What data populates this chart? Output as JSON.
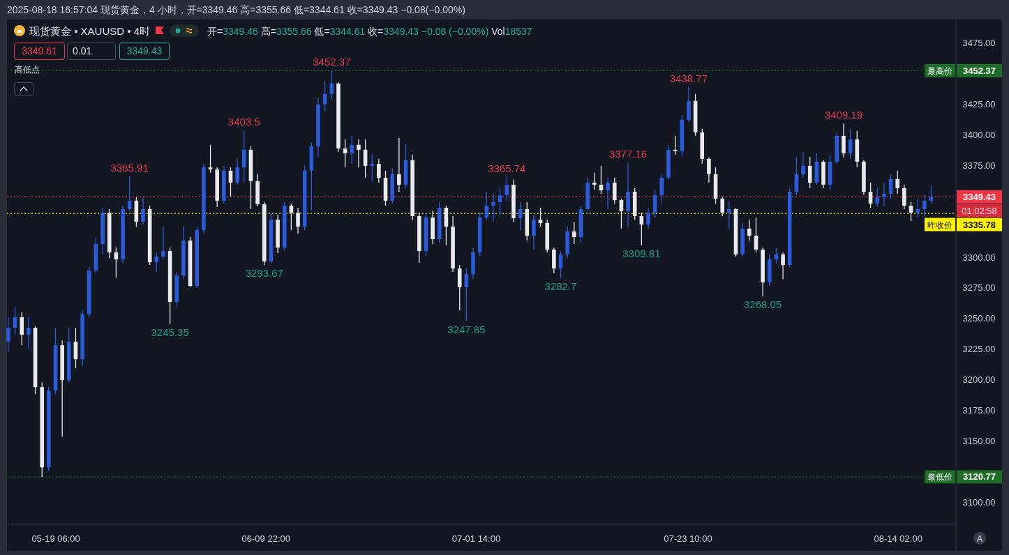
{
  "chart_data": {
    "type": "candlestick",
    "title": "现货黄金 • XAUUSD • 4时",
    "subtitle": "开=3349.46 高=3355.66 低=3344.61 收=3349.43 −0.08 (−0.00%) Vol18537",
    "annotations": [
      "2025-08-18 16:57:04 现货黄金，4 小时，开=3349.46 高=3355.66 低=3344.61 收=3349.43 −0.08(−0.00%)",
      "3349.61",
      "0.01",
      "3349.43",
      "高低点",
      "01:02:58",
      "A",
      {
        "text": "3365.91",
        "x": "2025-05-26T20:20",
        "y": 3365.91
      },
      {
        "text": "3245.35",
        "x": "2025-05-31T00:20",
        "y": 3245.35
      },
      {
        "text": "3403.5",
        "x": "2025-06-07T15:40",
        "y": 3403.5
      },
      {
        "text": "3293.67",
        "x": "2025-06-09T17:40",
        "y": 3293.67
      },
      {
        "text": "3452.37",
        "x": "2025-06-16T16:20",
        "y": 3452.37
      },
      {
        "text": "3247.85",
        "x": "2025-06-30T13:40",
        "y": 3247.85
      },
      {
        "text": "3365.74",
        "x": "2025-07-04T17:40",
        "y": 3365.74
      },
      {
        "text": "3282.7",
        "x": "2025-07-10T07:00",
        "y": 3282.7
      },
      {
        "text": "3377.16",
        "x": "2025-07-17T05:40",
        "y": 3377.16
      },
      {
        "text": "3309.81",
        "x": "2025-07-18T15:00",
        "y": 3309.81
      },
      {
        "text": "3438.77",
        "x": "2025-07-23T11:40",
        "y": 3438.77
      },
      {
        "text": "3268.05",
        "x": "2025-07-31T03:00",
        "y": 3268.05
      },
      {
        "text": "3409.19",
        "x": "2025-08-08T11:00",
        "y": 3409.19
      },
      "3452.37",
      "3120.77",
      "3349.43",
      "3335.78"
    ],
    "x": [
      "2025-05-14T08:20",
      "2025-05-15T01:00",
      "2025-05-15T17:40",
      "2025-05-16T10:20",
      "2025-05-17T03:00",
      "2025-05-17T19:40",
      "2025-05-18T12:20",
      "2025-05-19T05:00",
      "2025-05-19T21:40",
      "2025-05-20T14:20",
      "2025-05-21T07:00",
      "2025-05-21T23:40",
      "2025-05-22T16:20",
      "2025-05-23T09:00",
      "2025-05-24T01:40",
      "2025-05-24T18:20",
      "2025-05-25T11:00",
      "2025-05-26T03:40",
      "2025-05-26T20:20",
      "2025-05-27T13:00",
      "2025-05-28T05:40",
      "2025-05-28T22:20",
      "2025-05-29T15:00",
      "2025-05-30T07:40",
      "2025-05-31T00:20",
      "2025-05-31T17:00",
      "2025-06-01T09:40",
      "2025-06-02T02:20",
      "2025-06-02T19:00",
      "2025-06-03T11:40",
      "2025-06-04T04:20",
      "2025-06-04T21:00",
      "2025-06-05T13:40",
      "2025-06-06T06:20",
      "2025-06-06T23:00",
      "2025-06-07T15:40",
      "2025-06-08T08:20",
      "2025-06-09T01:00",
      "2025-06-09T17:40",
      "2025-06-10T10:20",
      "2025-06-11T03:00",
      "2025-06-11T19:40",
      "2025-06-12T12:20",
      "2025-06-13T05:00",
      "2025-06-13T21:40",
      "2025-06-14T14:20",
      "2025-06-15T07:00",
      "2025-06-15T23:40",
      "2025-06-16T16:20",
      "2025-06-17T09:00",
      "2025-06-18T01:40",
      "2025-06-18T18:20",
      "2025-06-19T11:00",
      "2025-06-20T03:40",
      "2025-06-20T20:20",
      "2025-06-21T13:00",
      "2025-06-22T05:40",
      "2025-06-22T22:20",
      "2025-06-23T15:00",
      "2025-06-24T07:40",
      "2025-06-25T00:20",
      "2025-06-25T17:00",
      "2025-06-26T09:40",
      "2025-06-27T02:20",
      "2025-06-27T19:00",
      "2025-06-28T11:40",
      "2025-06-29T04:20",
      "2025-06-29T21:00",
      "2025-06-30T13:40",
      "2025-07-01T06:20",
      "2025-07-01T23:00",
      "2025-07-02T15:40",
      "2025-07-03T08:20",
      "2025-07-04T01:00",
      "2025-07-04T17:40",
      "2025-07-05T10:20",
      "2025-07-06T03:00",
      "2025-07-06T19:40",
      "2025-07-07T12:20",
      "2025-07-08T05:00",
      "2025-07-08T21:40",
      "2025-07-09T14:20",
      "2025-07-10T07:00",
      "2025-07-10T23:40",
      "2025-07-11T16:20",
      "2025-07-12T09:00",
      "2025-07-13T01:40",
      "2025-07-13T18:20",
      "2025-07-14T11:00",
      "2025-07-15T03:40",
      "2025-07-15T20:20",
      "2025-07-16T13:00",
      "2025-07-17T05:40",
      "2025-07-17T22:20",
      "2025-07-18T15:00",
      "2025-07-19T07:40",
      "2025-07-20T00:20",
      "2025-07-20T17:00",
      "2025-07-21T09:40",
      "2025-07-22T02:20",
      "2025-07-22T19:00",
      "2025-07-23T11:40",
      "2025-07-24T04:20",
      "2025-07-24T21:00",
      "2025-07-25T13:40",
      "2025-07-26T06:20",
      "2025-07-26T23:00",
      "2025-07-27T15:40",
      "2025-07-28T08:20",
      "2025-07-29T01:00",
      "2025-07-29T17:40",
      "2025-07-30T10:20",
      "2025-07-31T03:00",
      "2025-07-31T19:40",
      "2025-08-01T12:20",
      "2025-08-02T05:00",
      "2025-08-02T21:40",
      "2025-08-03T14:20",
      "2025-08-04T07:00",
      "2025-08-04T23:40",
      "2025-08-05T16:20",
      "2025-08-06T09:00",
      "2025-08-07T01:40",
      "2025-08-07T18:20",
      "2025-08-08T11:00",
      "2025-08-09T03:40",
      "2025-08-09T20:20",
      "2025-08-10T13:00",
      "2025-08-11T05:40",
      "2025-08-11T22:20",
      "2025-08-12T15:00",
      "2025-08-13T07:40",
      "2025-08-14T00:20",
      "2025-08-14T17:00",
      "2025-08-15T09:40",
      "2025-08-16T02:20",
      "2025-08-16T19:00",
      "2025-08-17T11:40"
    ],
    "ohlc": [
      [
        3231.1,
        3251.0,
        3222.5,
        3242.5
      ],
      [
        3242.5,
        3259.5,
        3236.8,
        3251.0
      ],
      [
        3251.0,
        3255.0,
        3228.2,
        3236.8
      ],
      [
        3236.8,
        3251.0,
        3225.4,
        3242.5
      ],
      [
        3242.5,
        3243.6,
        3188.3,
        3194.0
      ],
      [
        3194.0,
        3198.0,
        3120.77,
        3128.5
      ],
      [
        3128.5,
        3194.0,
        3125.6,
        3191.2
      ],
      [
        3191.2,
        3242.5,
        3188.3,
        3228.2
      ],
      [
        3228.2,
        3232.2,
        3153.6,
        3199.7
      ],
      [
        3199.7,
        3242.5,
        3198.0,
        3231.1
      ],
      [
        3231.1,
        3242.5,
        3209.4,
        3216.8
      ],
      [
        3216.8,
        3256.7,
        3211.1,
        3253.8
      ],
      [
        3253.8,
        3292.0,
        3251.0,
        3289.2
      ],
      [
        3289.2,
        3316.5,
        3286.9,
        3310.8
      ],
      [
        3310.8,
        3341.0,
        3302.3,
        3336.5
      ],
      [
        3336.5,
        3339.3,
        3299.4,
        3304.0
      ],
      [
        3304.0,
        3308.0,
        3283.5,
        3298.3
      ],
      [
        3298.3,
        3342.2,
        3294.9,
        3339.3
      ],
      [
        3339.3,
        3365.91,
        3338.2,
        3346.2
      ],
      [
        3346.2,
        3349.0,
        3325.1,
        3329.1
      ],
      [
        3329.1,
        3349.0,
        3326.8,
        3339.3
      ],
      [
        3339.3,
        3342.2,
        3293.7,
        3296.0
      ],
      [
        3296.0,
        3304.0,
        3287.5,
        3300.6
      ],
      [
        3300.6,
        3325.1,
        3298.3,
        3305.1
      ],
      [
        3305.1,
        3308.0,
        3245.35,
        3263.6
      ],
      [
        3263.6,
        3288.0,
        3259.5,
        3285.2
      ],
      [
        3285.2,
        3325.1,
        3282.3,
        3313.7
      ],
      [
        3313.7,
        3316.5,
        3275.5,
        3276.6
      ],
      [
        3276.6,
        3325.1,
        3275.0,
        3322.2
      ],
      [
        3322.2,
        3376.4,
        3319.4,
        3373.5
      ],
      [
        3373.5,
        3391.8,
        3369.0,
        3371.8
      ],
      [
        3371.8,
        3373.5,
        3341.0,
        3346.2
      ],
      [
        3346.2,
        3374.7,
        3343.9,
        3370.7
      ],
      [
        3370.7,
        3373.5,
        3349.6,
        3361.0
      ],
      [
        3361.0,
        3380.4,
        3359.3,
        3373.5
      ],
      [
        3373.5,
        3403.5,
        3361.0,
        3387.8
      ],
      [
        3387.8,
        3390.6,
        3339.3,
        3362.1
      ],
      [
        3362.1,
        3367.8,
        3341.6,
        3343.3
      ],
      [
        3343.3,
        3345.0,
        3293.67,
        3296.6
      ],
      [
        3296.6,
        3336.5,
        3294.9,
        3330.8
      ],
      [
        3330.8,
        3334.8,
        3303.4,
        3308.0
      ],
      [
        3308.0,
        3345.0,
        3305.1,
        3342.2
      ],
      [
        3342.2,
        3343.9,
        3322.2,
        3336.5
      ],
      [
        3336.5,
        3340.5,
        3319.4,
        3325.1
      ],
      [
        3325.1,
        3374.7,
        3322.2,
        3370.7
      ],
      [
        3370.7,
        3393.5,
        3338.2,
        3390.6
      ],
      [
        3390.6,
        3430.5,
        3382.1,
        3424.8
      ],
      [
        3424.8,
        3443.6,
        3419.1,
        3433.4
      ],
      [
        3433.4,
        3452.37,
        3429.4,
        3441.9
      ],
      [
        3441.9,
        3443.1,
        3386.1,
        3388.9
      ],
      [
        3388.9,
        3396.3,
        3373.5,
        3384.9
      ],
      [
        3384.9,
        3399.2,
        3376.4,
        3391.8
      ],
      [
        3391.8,
        3396.3,
        3373.5,
        3387.8
      ],
      [
        3387.8,
        3396.3,
        3365.0,
        3374.7
      ],
      [
        3374.7,
        3383.8,
        3362.1,
        3376.4
      ],
      [
        3376.4,
        3380.4,
        3361.0,
        3365.0
      ],
      [
        3365.0,
        3370.7,
        3342.2,
        3346.2
      ],
      [
        3346.2,
        3372.4,
        3343.9,
        3367.8
      ],
      [
        3367.8,
        3397.5,
        3353.6,
        3359.3
      ],
      [
        3359.3,
        3392.4,
        3356.4,
        3379.2
      ],
      [
        3379.2,
        3383.8,
        3330.2,
        3333.6
      ],
      [
        3333.6,
        3336.5,
        3295.5,
        3305.1
      ],
      [
        3305.1,
        3336.5,
        3300.6,
        3332.5
      ],
      [
        3332.5,
        3338.2,
        3310.8,
        3314.8
      ],
      [
        3314.8,
        3345.0,
        3312.0,
        3340.5
      ],
      [
        3340.5,
        3342.2,
        3309.7,
        3325.1
      ],
      [
        3325.1,
        3333.6,
        3288.0,
        3290.9
      ],
      [
        3290.9,
        3293.7,
        3256.7,
        3275.5
      ],
      [
        3275.5,
        3290.9,
        3247.85,
        3286.3
      ],
      [
        3286.3,
        3308.0,
        3282.3,
        3304.0
      ],
      [
        3304.0,
        3336.5,
        3300.6,
        3332.5
      ],
      [
        3332.5,
        3353.6,
        3330.8,
        3342.2
      ],
      [
        3342.2,
        3351.9,
        3329.1,
        3345.0
      ],
      [
        3345.0,
        3356.4,
        3334.8,
        3350.7
      ],
      [
        3350.7,
        3365.74,
        3346.2,
        3359.3
      ],
      [
        3359.3,
        3363.3,
        3329.1,
        3331.9
      ],
      [
        3331.9,
        3345.0,
        3322.2,
        3339.3
      ],
      [
        3339.3,
        3345.0,
        3313.7,
        3317.7
      ],
      [
        3317.7,
        3334.8,
        3306.3,
        3330.8
      ],
      [
        3330.8,
        3340.5,
        3325.1,
        3327.9
      ],
      [
        3327.9,
        3330.8,
        3304.0,
        3306.3
      ],
      [
        3306.3,
        3308.0,
        3286.9,
        3290.9
      ],
      [
        3290.9,
        3305.1,
        3282.7,
        3302.3
      ],
      [
        3302.3,
        3325.1,
        3299.4,
        3321.1
      ],
      [
        3321.1,
        3329.1,
        3310.8,
        3316.5
      ],
      [
        3316.5,
        3342.2,
        3312.0,
        3339.3
      ],
      [
        3339.3,
        3365.0,
        3338.2,
        3361.0
      ],
      [
        3361.0,
        3369.0,
        3355.3,
        3359.3
      ],
      [
        3359.3,
        3374.7,
        3351.9,
        3354.7
      ],
      [
        3354.7,
        3365.0,
        3339.3,
        3361.0
      ],
      [
        3361.0,
        3365.0,
        3343.9,
        3346.7
      ],
      [
        3346.7,
        3347.9,
        3323.4,
        3337.6
      ],
      [
        3337.6,
        3377.16,
        3324.5,
        3353.6
      ],
      [
        3353.6,
        3356.4,
        3330.8,
        3333.6
      ],
      [
        3333.6,
        3336.5,
        3309.81,
        3326.8
      ],
      [
        3326.8,
        3340.5,
        3323.4,
        3336.5
      ],
      [
        3336.5,
        3355.3,
        3332.5,
        3350.7
      ],
      [
        3350.7,
        3367.8,
        3345.0,
        3365.0
      ],
      [
        3365.0,
        3391.8,
        3363.3,
        3387.8
      ],
      [
        3387.8,
        3399.2,
        3383.8,
        3386.7
      ],
      [
        3386.7,
        3416.3,
        3382.1,
        3412.3
      ],
      [
        3412.3,
        3438.77,
        3410.6,
        3427.7
      ],
      [
        3427.7,
        3433.4,
        3399.2,
        3402.0
      ],
      [
        3402.0,
        3404.9,
        3376.4,
        3380.4
      ],
      [
        3380.4,
        3381.5,
        3361.0,
        3367.8
      ],
      [
        3367.8,
        3373.5,
        3343.9,
        3347.9
      ],
      [
        3347.9,
        3349.6,
        3333.6,
        3336.5
      ],
      [
        3336.5,
        3346.2,
        3323.4,
        3339.3
      ],
      [
        3339.3,
        3340.5,
        3300.6,
        3302.3
      ],
      [
        3302.3,
        3327.9,
        3300.6,
        3323.4
      ],
      [
        3323.4,
        3330.8,
        3313.7,
        3317.7
      ],
      [
        3317.7,
        3332.5,
        3304.0,
        3306.3
      ],
      [
        3306.3,
        3308.0,
        3268.05,
        3279.5
      ],
      [
        3279.5,
        3302.3,
        3276.6,
        3298.3
      ],
      [
        3298.3,
        3308.0,
        3294.9,
        3302.3
      ],
      [
        3302.3,
        3304.0,
        3282.3,
        3293.7
      ],
      [
        3293.7,
        3356.4,
        3292.0,
        3353.6
      ],
      [
        3353.6,
        3382.1,
        3350.7,
        3367.8
      ],
      [
        3367.8,
        3386.1,
        3365.0,
        3374.7
      ],
      [
        3374.7,
        3382.1,
        3356.4,
        3361.0
      ],
      [
        3361.0,
        3384.9,
        3359.3,
        3378.1
      ],
      [
        3378.1,
        3379.2,
        3356.4,
        3359.3
      ],
      [
        3359.3,
        3383.8,
        3355.3,
        3378.1
      ],
      [
        3378.1,
        3402.0,
        3376.4,
        3399.2
      ],
      [
        3399.2,
        3409.19,
        3381.5,
        3384.9
      ],
      [
        3384.9,
        3404.9,
        3380.4,
        3396.3
      ],
      [
        3396.3,
        3403.2,
        3373.5,
        3378.1
      ],
      [
        3378.1,
        3379.2,
        3350.7,
        3353.6
      ],
      [
        3353.6,
        3361.0,
        3340.5,
        3343.9
      ],
      [
        3343.9,
        3356.4,
        3341.6,
        3349.0
      ],
      [
        3349.0,
        3361.0,
        3341.6,
        3351.9
      ],
      [
        3351.9,
        3367.8,
        3347.9,
        3363.8
      ],
      [
        3363.8,
        3370.7,
        3351.9,
        3356.4
      ],
      [
        3356.4,
        3359.3,
        3339.3,
        3342.2
      ],
      [
        3342.2,
        3345.0,
        3329.6,
        3336.5
      ],
      [
        3336.5,
        3347.9,
        3332.5,
        3339.3
      ],
      [
        3339.3,
        3350.7,
        3333.6,
        3346.2
      ],
      [
        3346.2,
        3358.7,
        3343.9,
        3349.43
      ]
    ],
    "colors": [
      "#2b5bd8",
      "#2b5bd8",
      "#e8eaed",
      "#2b5bd8",
      "#e8eaed",
      "#e8eaed",
      "#2b5bd8",
      "#2b5bd8",
      "#e8eaed",
      "#2b5bd8",
      "#e8eaed",
      "#2b5bd8",
      "#2b5bd8",
      "#2b5bd8",
      "#2b5bd8",
      "#e8eaed",
      "#e8eaed",
      "#2b5bd8",
      "#2b5bd8",
      "#e8eaed",
      "#2b5bd8",
      "#e8eaed",
      "#2b5bd8",
      "#2b5bd8",
      "#e8eaed",
      "#2b5bd8",
      "#2b5bd8",
      "#e8eaed",
      "#2b5bd8",
      "#2b5bd8",
      "#e8eaed",
      "#e8eaed",
      "#2b5bd8",
      "#e8eaed",
      "#2b5bd8",
      "#2b5bd8",
      "#e8eaed",
      "#e8eaed",
      "#e8eaed",
      "#2b5bd8",
      "#e8eaed",
      "#2b5bd8",
      "#e8eaed",
      "#e8eaed",
      "#2b5bd8",
      "#2b5bd8",
      "#2b5bd8",
      "#2b5bd8",
      "#2b5bd8",
      "#e8eaed",
      "#e8eaed",
      "#2b5bd8",
      "#e8eaed",
      "#e8eaed",
      "#2b5bd8",
      "#e8eaed",
      "#e8eaed",
      "#2b5bd8",
      "#e8eaed",
      "#2b5bd8",
      "#e8eaed",
      "#e8eaed",
      "#2b5bd8",
      "#e8eaed",
      "#2b5bd8",
      "#e8eaed",
      "#e8eaed",
      "#e8eaed",
      "#2b5bd8",
      "#2b5bd8",
      "#2b5bd8",
      "#2b5bd8",
      "#2b5bd8",
      "#2b5bd8",
      "#2b5bd8",
      "#e8eaed",
      "#2b5bd8",
      "#e8eaed",
      "#2b5bd8",
      "#e8eaed",
      "#e8eaed",
      "#e8eaed",
      "#2b5bd8",
      "#2b5bd8",
      "#e8eaed",
      "#2b5bd8",
      "#2b5bd8",
      "#e8eaed",
      "#e8eaed",
      "#2b5bd8",
      "#e8eaed",
      "#e8eaed",
      "#2b5bd8",
      "#e8eaed",
      "#e8eaed",
      "#2b5bd8",
      "#2b5bd8",
      "#2b5bd8",
      "#2b5bd8",
      "#e8eaed",
      "#2b5bd8",
      "#2b5bd8",
      "#e8eaed",
      "#e8eaed",
      "#e8eaed",
      "#e8eaed",
      "#e8eaed",
      "#2b5bd8",
      "#e8eaed",
      "#2b5bd8",
      "#e8eaed",
      "#e8eaed",
      "#e8eaed",
      "#2b5bd8",
      "#2b5bd8",
      "#e8eaed",
      "#2b5bd8",
      "#2b5bd8",
      "#2b5bd8",
      "#e8eaed",
      "#2b5bd8",
      "#e8eaed",
      "#2b5bd8",
      "#2b5bd8",
      "#e8eaed",
      "#2b5bd8",
      "#e8eaed",
      "#e8eaed",
      "#e8eaed",
      "#2b5bd8",
      "#2b5bd8",
      "#2b5bd8",
      "#e8eaed",
      "#e8eaed",
      "#e8eaed",
      "#2b5bd8",
      "#2b5bd8",
      "#2b5bd8"
    ],
    "xlim": [
      "2025-05-14T05:00",
      "2025-08-20T01:00"
    ],
    "xticks": [
      {
        "value": "2025-05-19T06:00",
        "label": "05-19 06:00"
      },
      {
        "value": "2025-06-09T22:00",
        "label": "06-09 22:00"
      },
      {
        "value": "2025-07-01T14:00",
        "label": "07-01 14:00"
      },
      {
        "value": "2025-07-23T10:00",
        "label": "07-23 10:00"
      },
      {
        "value": "2025-08-14T02:00",
        "label": "08-14 02:00"
      }
    ],
    "ylim": [
      3082,
      3493
    ],
    "yticks": [
      {
        "value": 3100,
        "label": "3100.00"
      },
      {
        "value": 3150,
        "label": "3150.00"
      },
      {
        "value": 3175,
        "label": "3175.00"
      },
      {
        "value": 3200,
        "label": "3200.00"
      },
      {
        "value": 3225,
        "label": "3225.00"
      },
      {
        "value": 3250,
        "label": "3250.00"
      },
      {
        "value": 3275,
        "label": "3275.00"
      },
      {
        "value": 3300,
        "label": "3300.00"
      },
      {
        "value": 3375,
        "label": "3375.00"
      },
      {
        "value": 3400,
        "label": "3400.00"
      },
      {
        "value": 3425,
        "label": "3425.00"
      },
      {
        "value": 3475,
        "label": "3475.00"
      }
    ],
    "ref_lines": [
      {
        "axis": "y",
        "value": 3452.37,
        "label": "最高价",
        "color": "#1f6b28",
        "line_style": "dotted"
      },
      {
        "axis": "y",
        "value": 3120.77,
        "label": "最低价",
        "color": "#1f6b28",
        "line_style": "dotted"
      },
      {
        "axis": "y",
        "value": 3349.43,
        "label": null,
        "color": "#f23645",
        "line_style": "dotted"
      },
      {
        "axis": "y",
        "value": 3335.78,
        "label": "昨收价",
        "color": "#fff200",
        "line_style": "dotted"
      }
    ]
  }
}
